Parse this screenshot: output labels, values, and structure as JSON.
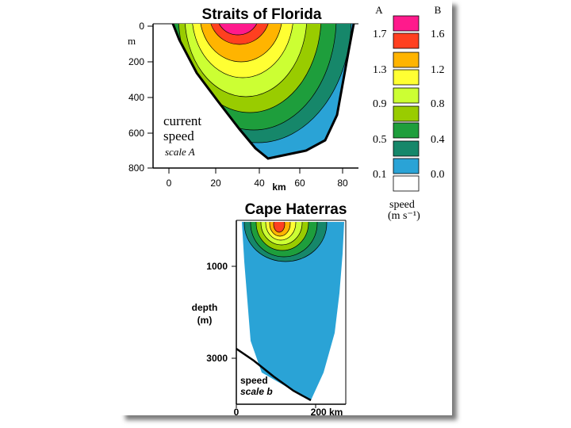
{
  "figure_a": {
    "title": "Straits of Florida",
    "y_ticks": [
      "0",
      "200",
      "400",
      "600",
      "800"
    ],
    "y_unit": "m",
    "x_ticks": [
      "0",
      "20",
      "40",
      "60",
      "80"
    ],
    "x_unit": "km",
    "label_line1": "current",
    "label_line2": "speed",
    "label_line3": "scale A"
  },
  "legend": {
    "header_a": "A",
    "header_b": "B",
    "scale_a": [
      "1.7",
      "1.3",
      "0.9",
      "0.5",
      "0.1"
    ],
    "scale_b": [
      "1.6",
      "1.2",
      "0.8",
      "0.4",
      "0.0"
    ],
    "caption_line1": "speed",
    "caption_line2": "(m s⁻¹)",
    "colors": [
      "#ff1a8c",
      "#ff4020",
      "#ffb400",
      "#ffff33",
      "#ccff33",
      "#99cc00",
      "#1e9e3c",
      "#16876a",
      "#2aa3d6",
      "#ffffff"
    ]
  },
  "figure_b": {
    "title": "Cape Haterras",
    "y_ticks": [
      "1000",
      "3000"
    ],
    "y_title_line1": "depth",
    "y_title_line2": "(m)",
    "x_ticks": [
      "0",
      "200 km"
    ],
    "label_line1": "speed",
    "label_line2": "scale b"
  }
}
